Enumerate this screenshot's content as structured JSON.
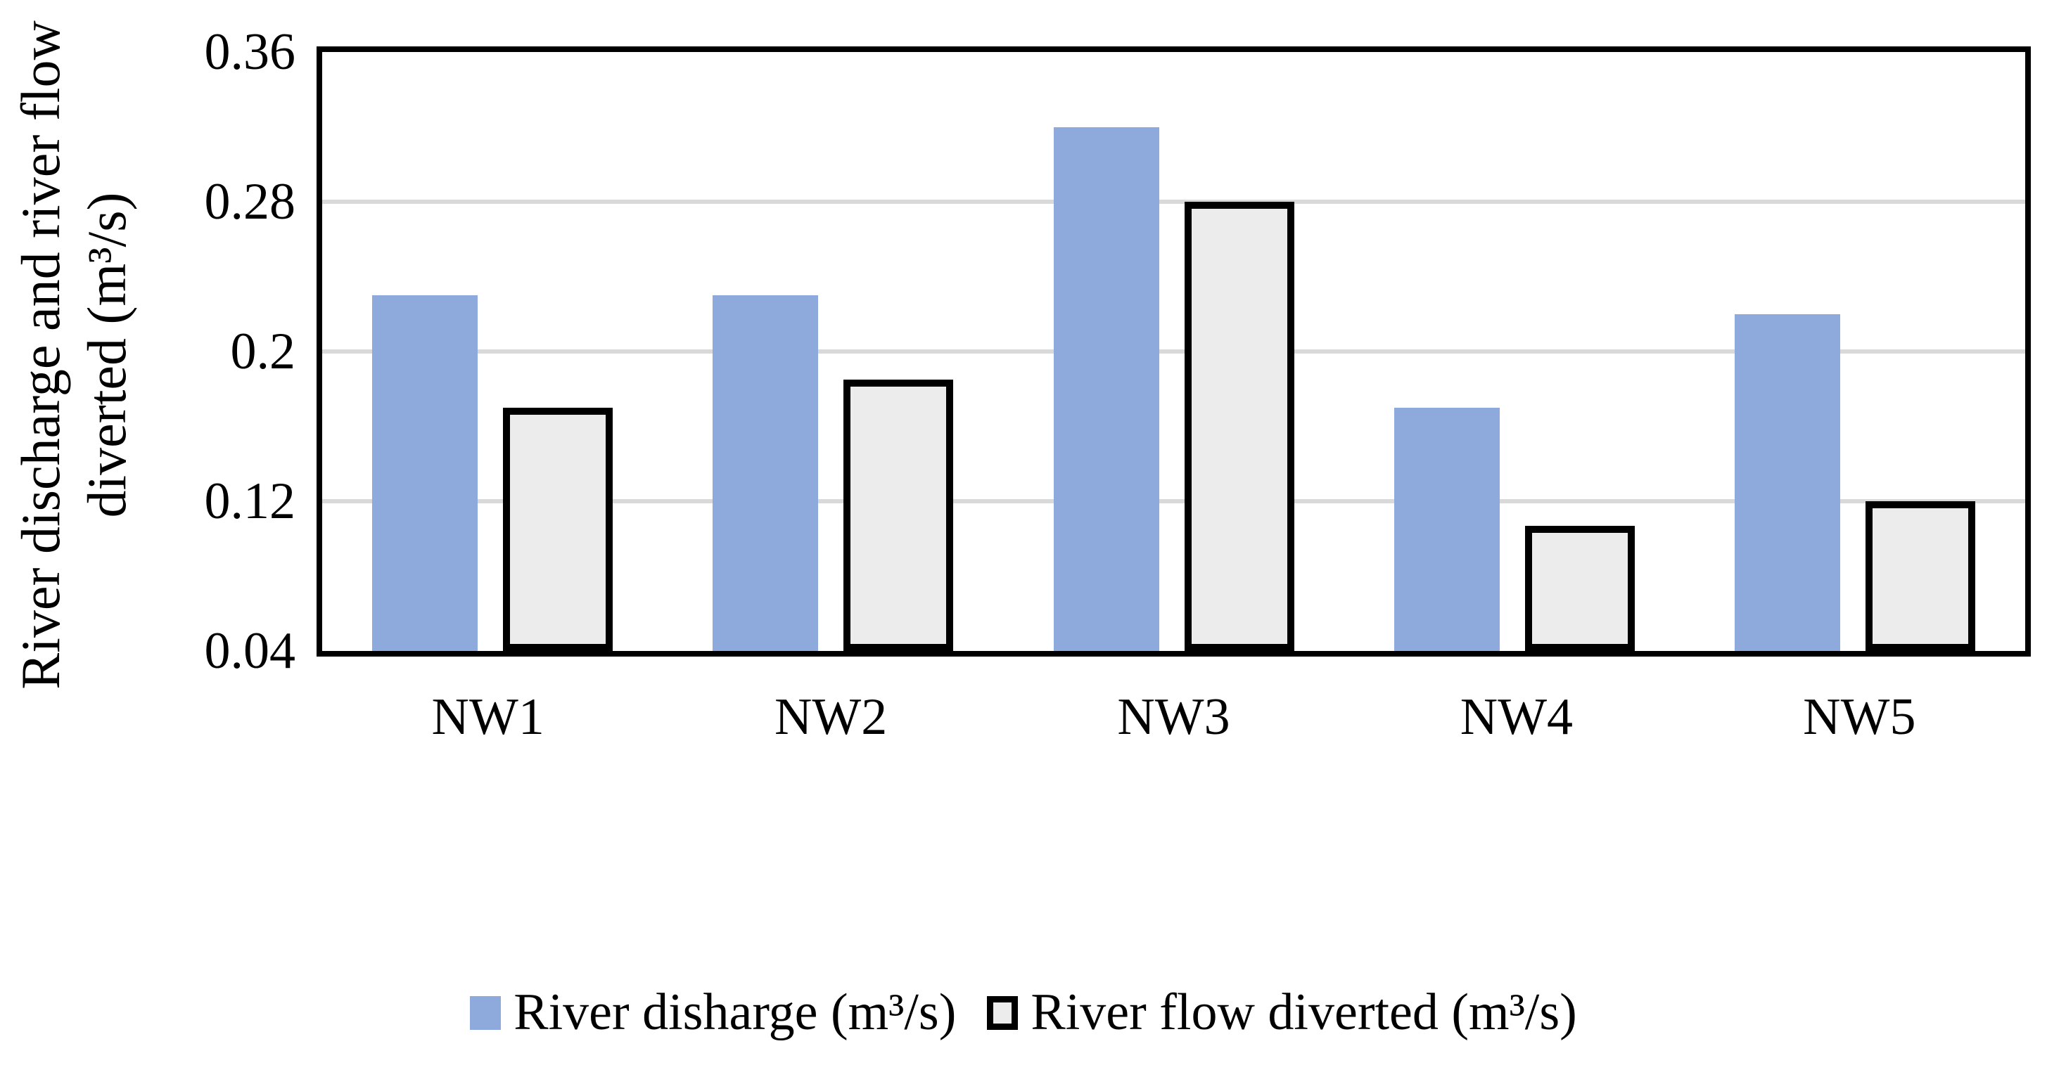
{
  "figure": {
    "y_axis_title_line1": "River discharge and river flow",
    "y_axis_title_line2": "diverted (m³/s)"
  },
  "chart_data": {
    "type": "bar",
    "categories": [
      "NW1",
      "NW2",
      "NW3",
      "NW4",
      "NW5"
    ],
    "series": [
      {
        "name": "River disharge (m³/s)",
        "color": "#8EA9DB",
        "values": [
          0.23,
          0.23,
          0.32,
          0.17,
          0.22
        ]
      },
      {
        "name": "River flow diverted (m³/s)",
        "color": "#ECECEC",
        "border_color": "#000000",
        "values": [
          0.17,
          0.185,
          0.28,
          0.107,
          0.12
        ]
      }
    ],
    "xlabel": "",
    "ylabel": "River discharge and river flow diverted (m³/s)",
    "ylim": [
      0.04,
      0.36
    ],
    "yticks": [
      0.36,
      0.28,
      0.2,
      0.12,
      0.04
    ],
    "ytick_labels": [
      "0.36",
      "0.28",
      "0.2",
      "0.12",
      "0.04"
    ],
    "grid": true,
    "gridline_color": "#D9D9D9",
    "legend_position": "bottom"
  }
}
